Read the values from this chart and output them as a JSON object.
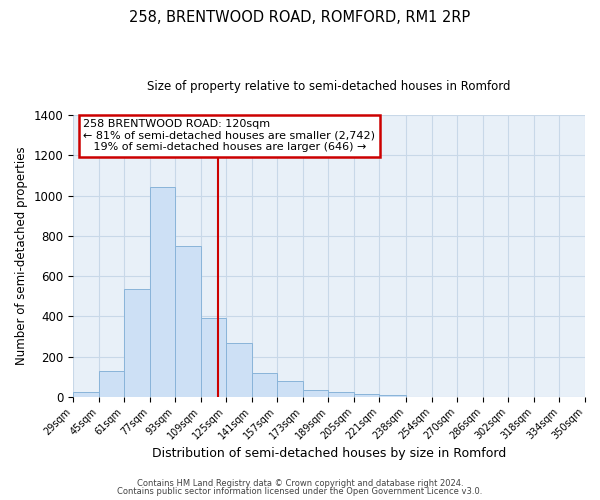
{
  "title": "258, BRENTWOOD ROAD, ROMFORD, RM1 2RP",
  "subtitle": "Size of property relative to semi-detached houses in Romford",
  "xlabel": "Distribution of semi-detached houses by size in Romford",
  "ylabel": "Number of semi-detached properties",
  "bin_labels": [
    "29sqm",
    "45sqm",
    "61sqm",
    "77sqm",
    "93sqm",
    "109sqm",
    "125sqm",
    "141sqm",
    "157sqm",
    "173sqm",
    "189sqm",
    "205sqm",
    "221sqm",
    "238sqm",
    "254sqm",
    "270sqm",
    "286sqm",
    "302sqm",
    "318sqm",
    "334sqm",
    "350sqm"
  ],
  "bar_heights": [
    25,
    130,
    535,
    1040,
    750,
    390,
    265,
    120,
    80,
    35,
    25,
    12,
    7,
    0,
    0,
    0,
    0,
    0,
    0,
    0,
    10
  ],
  "bin_edges": [
    29,
    45,
    61,
    77,
    93,
    109,
    125,
    141,
    157,
    173,
    189,
    205,
    221,
    238,
    254,
    270,
    286,
    302,
    318,
    334,
    350
  ],
  "bar_color": "#cde0f5",
  "bar_edge_color": "#89b4d9",
  "property_size": 120,
  "vline_color": "#cc0000",
  "annotation_text_line1": "258 BRENTWOOD ROAD: 120sqm",
  "annotation_text_line2": "← 81% of semi-detached houses are smaller (2,742)",
  "annotation_text_line3": "   19% of semi-detached houses are larger (646) →",
  "annotation_box_color": "#cc0000",
  "ylim": [
    0,
    1400
  ],
  "yticks": [
    0,
    200,
    400,
    600,
    800,
    1000,
    1200,
    1400
  ],
  "footer_line1": "Contains HM Land Registry data © Crown copyright and database right 2024.",
  "footer_line2": "Contains public sector information licensed under the Open Government Licence v3.0.",
  "background_color": "#ffffff",
  "plot_bg_color": "#e8f0f8",
  "grid_color": "#c8d8e8"
}
